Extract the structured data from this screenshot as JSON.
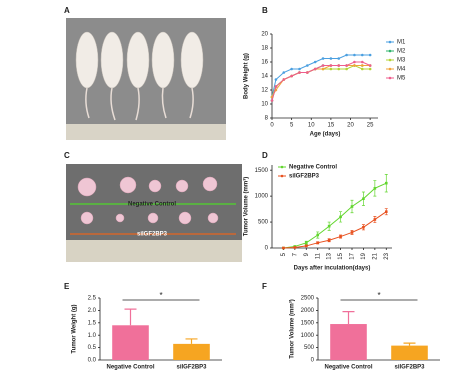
{
  "panels": [
    "A",
    "B",
    "C",
    "D",
    "E",
    "F"
  ],
  "photo_c": {
    "labels": [
      "Negative Control",
      "siIGF2BP3"
    ]
  },
  "chart_data": [
    {
      "type": "line",
      "xlabel": "Age (days)",
      "ylabel": "Body Weight (g)",
      "x": [
        0,
        1,
        3,
        5,
        7,
        9,
        11,
        13,
        15,
        17,
        19,
        21,
        23,
        25
      ],
      "xlim": [
        0,
        27
      ],
      "xticks": [
        0,
        5,
        10,
        15,
        20,
        25
      ],
      "ylim": [
        8,
        20
      ],
      "yticks": [
        8,
        10,
        12,
        14,
        16,
        18,
        20
      ],
      "legend": "right",
      "series": [
        {
          "name": "M1",
          "color": "#4a9fe0",
          "values": [
            11,
            13.5,
            14.5,
            15,
            15,
            15.5,
            16,
            16.5,
            16.5,
            16.5,
            17,
            17,
            17,
            17
          ]
        },
        {
          "name": "M2",
          "color": "#2db36b",
          "values": [
            10.5,
            12.5,
            13.5,
            14,
            14.5,
            14.5,
            15,
            15.5,
            15.5,
            15.5,
            15.5,
            15.5,
            15.5,
            15.5
          ]
        },
        {
          "name": "M3",
          "color": "#b5d334",
          "values": [
            11,
            12.5,
            13.5,
            14,
            14.5,
            14.5,
            15,
            15,
            15,
            15,
            15,
            15.5,
            15,
            15
          ]
        },
        {
          "name": "M4",
          "color": "#f2a33a",
          "values": [
            11,
            12,
            13.5,
            14,
            14.5,
            14.5,
            15,
            15,
            15.5,
            15.5,
            15.5,
            15.5,
            15.5,
            15.5
          ]
        },
        {
          "name": "M5",
          "color": "#ef5d8c",
          "values": [
            10.5,
            12.5,
            13.5,
            14,
            14.5,
            14.5,
            15,
            15.5,
            15.5,
            15.5,
            15.5,
            16,
            16,
            15.5
          ]
        }
      ]
    },
    {
      "type": "line",
      "xlabel": "Days after inculation(days)",
      "ylabel": "Tumor Volume (mm³)",
      "x": [
        5,
        7,
        9,
        11,
        13,
        15,
        17,
        19,
        21,
        23
      ],
      "xlim": [
        3,
        24
      ],
      "xticks": [
        5,
        7,
        9,
        11,
        13,
        15,
        17,
        19,
        21,
        23
      ],
      "rotate_xticks": true,
      "ylim": [
        0,
        1600
      ],
      "yticks": [
        0,
        500,
        1000,
        1500
      ],
      "legend": "top-left",
      "series": [
        {
          "name": "Negative Control",
          "color": "#62d62e",
          "values": [
            0,
            30,
            100,
            250,
            420,
            600,
            800,
            950,
            1150,
            1250
          ],
          "errors": [
            5,
            10,
            30,
            60,
            80,
            100,
            120,
            130,
            150,
            170
          ]
        },
        {
          "name": "siIGF2BP3",
          "color": "#e8501e",
          "values": [
            0,
            10,
            40,
            100,
            150,
            220,
            300,
            400,
            550,
            700
          ],
          "errors": [
            5,
            10,
            15,
            20,
            30,
            30,
            40,
            50,
            60,
            60
          ]
        }
      ]
    },
    {
      "type": "bar",
      "ylabel": "Tumor Weight (g)",
      "categories": [
        "Negative Control",
        "siIGF2BP3"
      ],
      "colors": [
        "#f0709a",
        "#f6a521"
      ],
      "values": [
        1.4,
        0.65
      ],
      "errors": [
        0.65,
        0.2
      ],
      "significance": "*",
      "ylim": [
        0,
        2.5
      ],
      "yticks": [
        {
          "value": 0,
          "label": "0.0"
        },
        {
          "value": 0.5,
          "label": "0.5"
        },
        {
          "value": 1,
          "label": "1.0"
        },
        {
          "value": 1.5,
          "label": "1.5"
        },
        {
          "value": 2,
          "label": "2.0"
        },
        {
          "value": 2.5,
          "label": "2.5"
        }
      ]
    },
    {
      "type": "bar",
      "ylabel": "Tumor Volume (mm³)",
      "categories": [
        "Negative Control",
        "siIGF2BP3"
      ],
      "colors": [
        "#f0709a",
        "#f6a521"
      ],
      "values": [
        1450,
        580
      ],
      "errors": [
        500,
        100
      ],
      "significance": "*",
      "ylim": [
        0,
        2500
      ],
      "yticks": [
        0,
        500,
        1000,
        1500,
        2000,
        2500
      ]
    }
  ]
}
